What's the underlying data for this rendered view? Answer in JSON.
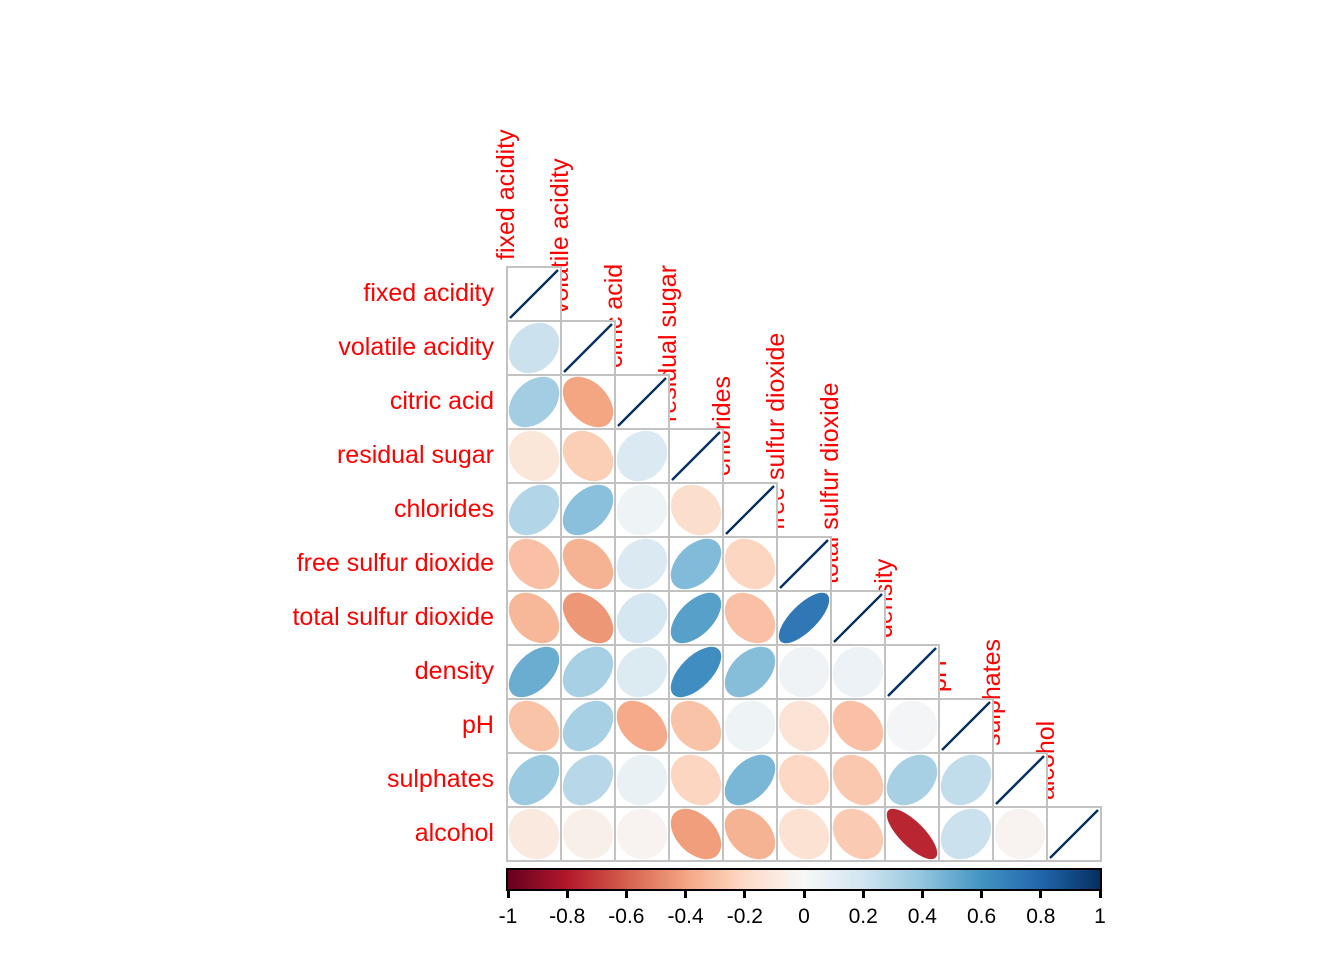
{
  "chart_data": {
    "type": "heatmap",
    "subtype": "correlation-ellipse-matrix",
    "title": "",
    "legend_position": "bottom",
    "variables": [
      "fixed acidity",
      "volatile acidity",
      "citric acid",
      "residual sugar",
      "chlorides",
      "free sulfur dioxide",
      "total sulfur dioxide",
      "density",
      "pH",
      "sulphates",
      "alcohol"
    ],
    "matrix_lower_triangle": [
      [
        1
      ],
      [
        0.22,
        1
      ],
      [
        0.35,
        -0.4,
        1
      ],
      [
        -0.12,
        -0.25,
        0.15,
        1
      ],
      [
        0.3,
        0.42,
        0.05,
        -0.18,
        1
      ],
      [
        -0.3,
        -0.35,
        0.15,
        0.44,
        -0.22,
        1
      ],
      [
        -0.33,
        -0.44,
        0.18,
        0.55,
        -0.3,
        0.72,
        1
      ],
      [
        0.5,
        0.33,
        0.14,
        0.62,
        0.43,
        0.04,
        0.06,
        1
      ],
      [
        -0.29,
        0.33,
        -0.38,
        -0.29,
        0.05,
        -0.14,
        -0.3,
        0.02,
        1
      ],
      [
        0.37,
        0.28,
        0.07,
        -0.22,
        0.46,
        -0.21,
        -0.27,
        0.33,
        0.25,
        1
      ],
      [
        -0.1,
        -0.06,
        -0.03,
        -0.42,
        -0.35,
        -0.15,
        -0.26,
        -0.76,
        0.22,
        -0.03,
        1
      ]
    ],
    "value_range": [
      -1,
      1
    ],
    "colors": {
      "palette_rdbu": [
        "#67001F",
        "#B2182B",
        "#D6604D",
        "#F4A582",
        "#FDDBC7",
        "#F7F7F7",
        "#D1E5F0",
        "#92C5DE",
        "#4393C3",
        "#2166AC",
        "#053061"
      ],
      "variable_label_color": "#FF0000",
      "grid_color": "#C2C2C2",
      "cell_background": "#FFFFFF",
      "diagonal_line_color": "#053061",
      "tick_label_color": "#000000",
      "background": "#FFFFFF"
    },
    "colorbar": {
      "tick_labels": [
        "-1",
        "-0.8",
        "-0.6",
        "-0.4",
        "-0.2",
        "0",
        "0.2",
        "0.4",
        "0.6",
        "0.8",
        "1"
      ],
      "min": -1,
      "max": 1
    }
  }
}
